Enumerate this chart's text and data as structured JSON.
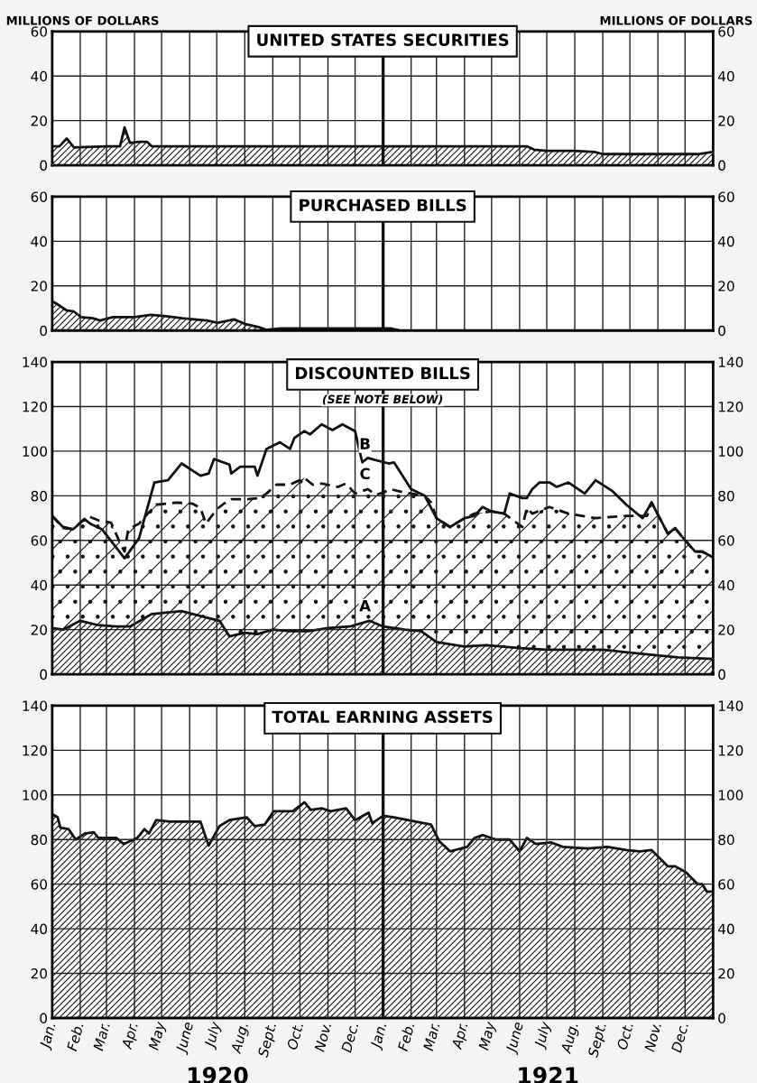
{
  "chart_data": [
    {
      "type": "area",
      "title": "UNITED STATES SECURITIES",
      "ylabel": "MILLIONS OF DOLLARS",
      "y2label": "MILLIONS OF DOLLARS",
      "grid": true,
      "legend": false,
      "tick_labels": "y",
      "xlim": [
        "1920-01-01",
        "1922-01-01"
      ],
      "ylim": [
        0,
        60
      ],
      "yticks": [
        0,
        20,
        40,
        60
      ],
      "y2lim": [
        0,
        60
      ],
      "y2ticks": [
        0,
        20,
        40,
        60
      ],
      "ref_lines": [
        {
          "axis": "x",
          "value": "1921-01-01",
          "color": "#111111"
        }
      ],
      "series": [
        {
          "color": "#111111",
          "x": [
            "1920-01-01",
            "1920-01-09",
            "1920-01-17",
            "1920-01-25",
            "1920-03-01",
            "1920-03-16",
            "1920-03-21",
            "1920-03-27",
            "1920-04-06",
            "1920-04-15",
            "1920-04-20",
            "1920-07-01",
            "1920-10-01",
            "1921-01-01",
            "1921-04-01",
            "1921-06-09",
            "1921-06-17",
            "1921-07-01",
            "1921-08-01",
            "1921-08-23",
            "1921-09-01",
            "1921-11-01",
            "1921-12-15",
            "1921-12-23",
            "1922-01-01"
          ],
          "values": [
            8.5,
            8.5,
            12,
            8,
            8.5,
            8.5,
            17,
            10,
            10.5,
            10.5,
            8.5,
            8.5,
            8.5,
            8.5,
            8.5,
            8.5,
            7,
            6.5,
            6.5,
            6,
            5,
            5,
            5,
            5.5,
            6
          ]
        }
      ]
    },
    {
      "type": "area",
      "title": "PURCHASED BILLS",
      "grid": true,
      "legend": false,
      "tick_labels": "y",
      "xlim": [
        "1920-01-01",
        "1922-01-01"
      ],
      "ylim": [
        0,
        60
      ],
      "yticks": [
        0,
        20,
        40,
        60
      ],
      "y2lim": [
        0,
        60
      ],
      "y2ticks": [
        0,
        20,
        40,
        60
      ],
      "ref_lines": [
        {
          "axis": "x",
          "value": "1921-01-01",
          "color": "#111111"
        }
      ],
      "series": [
        {
          "color": "#111111",
          "x": [
            "1920-01-01",
            "1920-01-06",
            "1920-01-17",
            "1920-01-25",
            "1920-02-02",
            "1920-02-15",
            "1920-02-23",
            "1920-03-08",
            "1920-04-01",
            "1920-04-19",
            "1920-05-04",
            "1920-05-24",
            "1920-06-20",
            "1920-07-02",
            "1920-07-20",
            "1920-08-01",
            "1920-08-17",
            "1920-08-25",
            "1920-09-10",
            "1920-11-01",
            "1921-01-01",
            "1921-01-09",
            "1921-01-17"
          ],
          "values": [
            13,
            12,
            9,
            8.5,
            6,
            5.5,
            4.5,
            6,
            6,
            7,
            6.5,
            5.5,
            4.5,
            3.5,
            5,
            3,
            1.5,
            0.3,
            1,
            1,
            1,
            1,
            0.3
          ]
        }
      ]
    },
    {
      "type": "area",
      "title": "DISCOUNTED BILLS",
      "subtitle": "(SEE NOTE BELOW)",
      "grid": true,
      "legend": false,
      "tick_labels": "y",
      "xlim": [
        "1920-01-01",
        "1922-01-01"
      ],
      "ylim": [
        0,
        140
      ],
      "yticks": [
        0,
        20,
        40,
        60,
        80,
        100,
        120,
        140
      ],
      "y2lim": [
        0,
        140
      ],
      "y2ticks": [
        0,
        20,
        40,
        60,
        80,
        100,
        120,
        140
      ],
      "ref_lines": [
        {
          "axis": "x",
          "value": "1921-01-01",
          "color": "#111111"
        }
      ],
      "series": [
        {
          "name": "C",
          "line_style": "dashed",
          "color": "#111111",
          "x": [
            "1920-01-01",
            "1920-01-13",
            "1920-01-24",
            "1920-02-09",
            "1920-02-21",
            "1920-03-06",
            "1920-03-17",
            "1920-03-21",
            "1920-03-25",
            "1920-04-06",
            "1920-04-15",
            "1920-04-25",
            "1920-05-17",
            "1920-06-04",
            "1920-06-13",
            "1920-06-19",
            "1920-07-01",
            "1920-07-09",
            "1920-07-17",
            "1920-08-04",
            "1920-08-17",
            "1920-08-25",
            "1920-09-05",
            "1920-09-20",
            "1920-10-06",
            "1920-10-15",
            "1920-10-25",
            "1920-11-12",
            "1920-11-21",
            "1920-12-01",
            "1920-12-15",
            "1920-12-24",
            "1921-01-01",
            "1921-01-09",
            "1921-01-25",
            "1921-02-16",
            "1921-02-23",
            "1921-03-01",
            "1921-03-16",
            "1921-04-01",
            "1921-04-12",
            "1921-05-01",
            "1921-05-15",
            "1921-06-04",
            "1921-06-09",
            "1921-06-15",
            "1921-07-04",
            "1921-07-25",
            "1921-08-24",
            "1921-09-27",
            "1921-10-20",
            "1921-10-25",
            "1921-11-12",
            "1921-11-20",
            "1921-11-27",
            "1921-12-12",
            "1921-12-20",
            "1922-01-01"
          ],
          "values": [
            71,
            65.5,
            65,
            71,
            69,
            68,
            58,
            55,
            65,
            67.5,
            71.7,
            76,
            77,
            76.5,
            74.5,
            67.5,
            74,
            76.5,
            78.5,
            78.5,
            79,
            81,
            85,
            85,
            88,
            85,
            85.5,
            84,
            85.5,
            81,
            83,
            80.5,
            81.4,
            83,
            81.4,
            80,
            77,
            70,
            66,
            70,
            72,
            73,
            72,
            66,
            74.5,
            72,
            75,
            72,
            70,
            71,
            71,
            77,
            63,
            65.5,
            62,
            55,
            55,
            52.4
          ]
        },
        {
          "name": "A",
          "color": "#111111",
          "x": [
            "1920-01-01",
            "1920-01-13",
            "1920-02-01",
            "1920-02-21",
            "1920-03-12",
            "1920-03-27",
            "1920-04-20",
            "1920-05-23",
            "1920-06-19",
            "1920-07-04",
            "1920-07-15",
            "1920-08-01",
            "1920-08-15",
            "1920-09-01",
            "1920-09-20",
            "1920-10-10",
            "1920-11-01",
            "1920-11-25",
            "1920-12-17",
            "1921-01-01",
            "1921-01-25",
            "1921-02-12",
            "1921-03-01",
            "1921-04-01",
            "1921-04-25",
            "1921-06-01",
            "1921-07-01",
            "1921-09-01",
            "1921-10-01",
            "1921-11-23",
            "1922-01-01"
          ],
          "values": [
            20.7,
            20,
            24,
            22,
            21.4,
            21.4,
            27,
            28.3,
            25.5,
            24,
            17,
            18.6,
            18,
            20,
            19.3,
            19.3,
            20.7,
            21.4,
            24,
            21.4,
            20,
            19.3,
            14.5,
            12.4,
            13,
            11.7,
            11,
            11,
            9.7,
            7.6,
            6.9
          ]
        },
        {
          "name": "B",
          "type": "line",
          "color": "#111111",
          "x": [
            "1920-01-01",
            "1920-01-13",
            "1920-01-24",
            "1920-02-06",
            "1920-02-12",
            "1920-02-25",
            "1920-03-21",
            "1920-04-06",
            "1920-04-23",
            "1920-05-08",
            "1920-05-23",
            "1920-06-13",
            "1920-06-22",
            "1920-06-28",
            "1920-07-15",
            "1920-07-17",
            "1920-07-27",
            "1920-08-12",
            "1920-08-15",
            "1920-08-25",
            "1920-09-09",
            "1920-09-20",
            "1920-09-25",
            "1920-10-06",
            "1920-10-12",
            "1920-10-25",
            "1920-11-06",
            "1920-11-17",
            "1920-12-01",
            "1920-12-06",
            "1920-12-09",
            "1920-12-15",
            "1920-12-24",
            "1921-01-07",
            "1921-01-13",
            "1921-02-01",
            "1921-02-16",
            "1921-03-01",
            "1921-03-16",
            "1921-04-01",
            "1921-04-12",
            "1921-04-21",
            "1921-05-01",
            "1921-05-15",
            "1921-05-21",
            "1921-06-04",
            "1921-06-09",
            "1921-06-15",
            "1921-06-23",
            "1921-07-04",
            "1921-07-12",
            "1921-07-25",
            "1921-08-12",
            "1921-08-24",
            "1921-09-12",
            "1921-09-27",
            "1921-10-15",
            "1921-10-25",
            "1921-11-12",
            "1921-11-20",
            "1921-11-27",
            "1921-12-12",
            "1921-12-20",
            "1922-01-01"
          ],
          "values": [
            71,
            66,
            65,
            69.5,
            67.5,
            65,
            52,
            61,
            86,
            87,
            94.5,
            89,
            90,
            96.5,
            94,
            90,
            93,
            93,
            89,
            101,
            104,
            101,
            106,
            109,
            107.5,
            112,
            109.5,
            112,
            109,
            100,
            95,
            97,
            96,
            94.5,
            95,
            83,
            80,
            70,
            66,
            70,
            71,
            75,
            73,
            72,
            81,
            79,
            79,
            83,
            86,
            86,
            84,
            86,
            81,
            87,
            82,
            76,
            70,
            77,
            63,
            65.5,
            62,
            55,
            55,
            52.4
          ]
        }
      ]
    },
    {
      "type": "area",
      "title": "TOTAL EARNING ASSETS",
      "grid": true,
      "legend": false,
      "xlim": [
        "1920-01-01",
        "1922-01-01"
      ],
      "ylim": [
        0,
        140
      ],
      "yticks": [
        0,
        20,
        40,
        60,
        80,
        100,
        120,
        140
      ],
      "y2lim": [
        0,
        140
      ],
      "y2ticks": [
        0,
        20,
        40,
        60,
        80,
        100,
        120,
        140
      ],
      "xticks": [
        {
          "value": "1920-01-01",
          "label": "Jan."
        },
        {
          "value": "1920-02-01",
          "label": "Feb."
        },
        {
          "value": "1920-03-01",
          "label": "Mar."
        },
        {
          "value": "1920-04-01",
          "label": "Apr."
        },
        {
          "value": "1920-05-01",
          "label": "May"
        },
        {
          "value": "1920-06-01",
          "label": "June"
        },
        {
          "value": "1920-07-01",
          "label": "July"
        },
        {
          "value": "1920-08-01",
          "label": "Aug."
        },
        {
          "value": "1920-09-01",
          "label": "Sept."
        },
        {
          "value": "1920-10-01",
          "label": "Oct."
        },
        {
          "value": "1920-11-01",
          "label": "Nov."
        },
        {
          "value": "1920-12-01",
          "label": "Dec."
        },
        {
          "value": "1921-01-01",
          "label": "Jan."
        },
        {
          "value": "1921-02-01",
          "label": "Feb."
        },
        {
          "value": "1921-03-01",
          "label": "Mar."
        },
        {
          "value": "1921-04-01",
          "label": "Apr."
        },
        {
          "value": "1921-05-01",
          "label": "May"
        },
        {
          "value": "1921-06-01",
          "label": "June"
        },
        {
          "value": "1921-07-01",
          "label": "July"
        },
        {
          "value": "1921-08-01",
          "label": "Aug."
        },
        {
          "value": "1921-09-01",
          "label": "Sept."
        },
        {
          "value": "1921-10-01",
          "label": "Oct."
        },
        {
          "value": "1921-11-01",
          "label": "Nov."
        },
        {
          "value": "1921-12-01",
          "label": "Dec."
        }
      ],
      "ref_lines": [
        {
          "axis": "x",
          "value": "1921-01-01",
          "color": "#111111"
        }
      ],
      "annotations": [
        "1920",
        "1921"
      ],
      "series": [
        {
          "color": "#111111",
          "x": [
            "1920-01-01",
            "1920-01-07",
            "1920-01-10",
            "1920-01-19",
            "1920-01-27",
            "1920-02-06",
            "1920-02-16",
            "1920-02-21",
            "1920-03-12",
            "1920-03-20",
            "1920-04-04",
            "1920-04-12",
            "1920-04-17",
            "1920-04-25",
            "1920-05-10",
            "1920-05-25",
            "1920-06-13",
            "1920-06-22",
            "1920-07-04",
            "1920-07-15",
            "1920-08-03",
            "1920-08-12",
            "1920-08-23",
            "1920-09-02",
            "1920-09-23",
            "1920-10-06",
            "1920-10-13",
            "1920-10-25",
            "1920-11-04",
            "1920-11-21",
            "1920-12-01",
            "1920-12-16",
            "1920-12-20",
            "1921-01-01",
            "1921-01-13",
            "1921-02-06",
            "1921-02-23",
            "1921-03-04",
            "1921-03-16",
            "1921-04-04",
            "1921-04-12",
            "1921-04-21",
            "1921-05-06",
            "1921-05-21",
            "1921-06-01",
            "1921-06-09",
            "1921-06-19",
            "1921-07-06",
            "1921-07-19",
            "1921-08-15",
            "1921-09-06",
            "1921-09-27",
            "1921-10-12",
            "1921-10-25",
            "1921-11-12",
            "1921-11-20",
            "1921-12-02",
            "1921-12-15",
            "1921-12-20",
            "1921-12-25",
            "1922-01-01"
          ],
          "values": [
            91.3,
            90,
            85.3,
            84.7,
            80,
            82.7,
            83.3,
            80.7,
            80.7,
            78,
            80.7,
            84.7,
            82.7,
            88.7,
            88,
            88,
            88,
            77.3,
            86,
            88.7,
            90,
            86,
            86.7,
            92.7,
            92.7,
            96.7,
            93.3,
            94,
            92.7,
            94,
            88.7,
            92,
            87.3,
            90.7,
            90,
            88,
            86.7,
            79.3,
            74.7,
            76.7,
            80.7,
            82,
            80,
            80,
            74.7,
            80.7,
            78,
            78.7,
            76.7,
            76,
            76.7,
            75.3,
            74.7,
            75.3,
            68,
            68,
            65.3,
            60,
            60,
            56.7,
            56.7
          ]
        }
      ]
    }
  ]
}
